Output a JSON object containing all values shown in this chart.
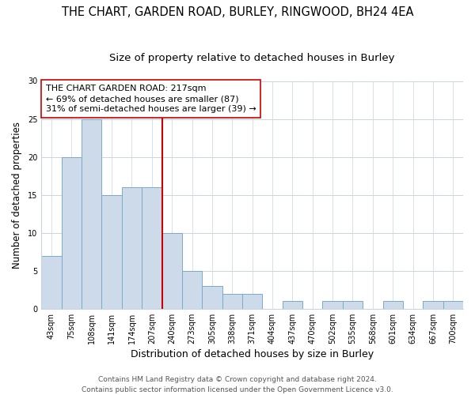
{
  "title": "THE CHART, GARDEN ROAD, BURLEY, RINGWOOD, BH24 4EA",
  "subtitle": "Size of property relative to detached houses in Burley",
  "xlabel": "Distribution of detached houses by size in Burley",
  "ylabel": "Number of detached properties",
  "bar_labels": [
    "43sqm",
    "75sqm",
    "108sqm",
    "141sqm",
    "174sqm",
    "207sqm",
    "240sqm",
    "273sqm",
    "305sqm",
    "338sqm",
    "371sqm",
    "404sqm",
    "437sqm",
    "470sqm",
    "502sqm",
    "535sqm",
    "568sqm",
    "601sqm",
    "634sqm",
    "667sqm",
    "700sqm"
  ],
  "bar_values": [
    7,
    20,
    25,
    15,
    16,
    16,
    10,
    5,
    3,
    2,
    2,
    0,
    1,
    0,
    1,
    1,
    0,
    1,
    0,
    1,
    1
  ],
  "bar_color": "#ccdaea",
  "bar_edge_color": "#7aaac8",
  "vline_x": 5.5,
  "vline_color": "#cc0000",
  "annotation_line1": "THE CHART GARDEN ROAD: 217sqm",
  "annotation_line2": "← 69% of detached houses are smaller (87)",
  "annotation_line3": "31% of semi-detached houses are larger (39) →",
  "annotation_box_edge_color": "#cc0000",
  "ylim": [
    0,
    30
  ],
  "yticks": [
    0,
    5,
    10,
    15,
    20,
    25,
    30
  ],
  "footer_line1": "Contains HM Land Registry data © Crown copyright and database right 2024.",
  "footer_line2": "Contains public sector information licensed under the Open Government Licence v3.0.",
  "title_fontsize": 10.5,
  "subtitle_fontsize": 9.5,
  "xlabel_fontsize": 9,
  "ylabel_fontsize": 8.5,
  "tick_fontsize": 7,
  "annotation_fontsize": 8,
  "footer_fontsize": 6.5,
  "background_color": "#ffffff",
  "grid_color": "#c8d4e0"
}
